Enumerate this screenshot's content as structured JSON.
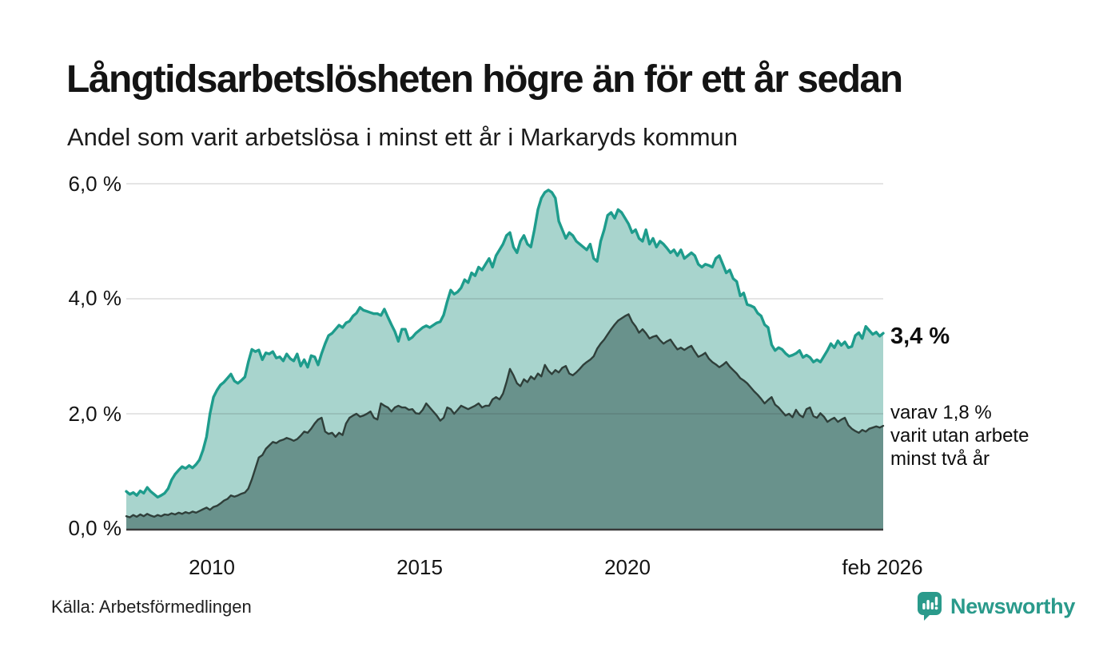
{
  "title": "Långtidsarbetslösheten högre än för ett år sedan",
  "subtitle": "Andel som varit arbetslösa i minst ett år i Markaryds kommun",
  "annotations": {
    "value_label": "3,4 %",
    "sub_lines": [
      "varav 1,8 %",
      "varit utan arbete",
      "minst två år"
    ]
  },
  "source": "Källa: Arbetsförmedlingen",
  "logo": {
    "text": "Newsworthy"
  },
  "colors": {
    "accent": "#2a9a8b",
    "gridline": "rgba(40,40,40,0.12)",
    "baseline": "#3a3a3a",
    "series1_line": "#1e9c8c",
    "series1_fill": "#a8d4cd",
    "series2_line": "#2f3f3a",
    "series2_fill": "#69928c"
  },
  "chart_data": {
    "type": "area",
    "title": "Långtidsarbetslösheten högre än för ett år sedan",
    "subtitle": "Andel som varit arbetslösa i minst ett år i Markaryds kommun",
    "unit": "%",
    "x_start": "2008-01",
    "x_end": "2026-02",
    "frequency": "monthly",
    "ylim": [
      0,
      6
    ],
    "grid": "horizontal",
    "y_tick_labels": [
      "6,0 %",
      "4,0 %",
      "2,0 %",
      "0,0 %"
    ],
    "y_tick_values": [
      6,
      4,
      2,
      0
    ],
    "x_tick_labels": [
      "2010",
      "2015",
      "2020",
      "feb 2026"
    ],
    "x_tick_month_index": [
      24,
      84,
      144,
      217
    ],
    "end_labels": {
      "series1": "3,4 %",
      "series2": "varav 1,8 % varit utan arbete minst två år"
    },
    "series": [
      {
        "name": "minst ett år",
        "color": "#1e9c8c",
        "fill": "#a8d4cd",
        "values": [
          0.65,
          0.6,
          0.63,
          0.58,
          0.66,
          0.62,
          0.72,
          0.65,
          0.6,
          0.55,
          0.58,
          0.62,
          0.7,
          0.85,
          0.95,
          1.02,
          1.08,
          1.05,
          1.1,
          1.06,
          1.12,
          1.2,
          1.37,
          1.6,
          2.0,
          2.29,
          2.41,
          2.5,
          2.55,
          2.62,
          2.69,
          2.57,
          2.53,
          2.58,
          2.64,
          2.9,
          3.12,
          3.08,
          3.11,
          2.94,
          3.06,
          3.04,
          3.08,
          2.97,
          2.99,
          2.92,
          3.04,
          2.96,
          2.92,
          3.04,
          2.83,
          2.94,
          2.81,
          3.01,
          2.99,
          2.85,
          3.05,
          3.22,
          3.36,
          3.4,
          3.47,
          3.54,
          3.5,
          3.58,
          3.61,
          3.7,
          3.75,
          3.85,
          3.8,
          3.78,
          3.76,
          3.74,
          3.74,
          3.71,
          3.82,
          3.68,
          3.55,
          3.43,
          3.26,
          3.47,
          3.47,
          3.29,
          3.33,
          3.4,
          3.45,
          3.5,
          3.53,
          3.5,
          3.54,
          3.58,
          3.6,
          3.72,
          3.95,
          4.15,
          4.08,
          4.12,
          4.19,
          4.33,
          4.28,
          4.45,
          4.4,
          4.55,
          4.5,
          4.6,
          4.7,
          4.55,
          4.75,
          4.85,
          4.95,
          5.1,
          5.15,
          4.9,
          4.8,
          5.0,
          5.1,
          4.95,
          4.9,
          5.2,
          5.55,
          5.75,
          5.85,
          5.89,
          5.85,
          5.75,
          5.35,
          5.2,
          5.05,
          5.15,
          5.1,
          5.0,
          4.95,
          4.9,
          4.85,
          4.95,
          4.7,
          4.65,
          5.0,
          5.2,
          5.45,
          5.5,
          5.4,
          5.55,
          5.5,
          5.4,
          5.3,
          5.15,
          5.2,
          5.05,
          5.0,
          5.2,
          4.95,
          5.05,
          4.9,
          5.0,
          4.95,
          4.88,
          4.8,
          4.85,
          4.75,
          4.85,
          4.7,
          4.75,
          4.8,
          4.75,
          4.6,
          4.55,
          4.6,
          4.58,
          4.55,
          4.7,
          4.75,
          4.6,
          4.45,
          4.5,
          4.35,
          4.3,
          4.05,
          4.1,
          3.9,
          3.88,
          3.85,
          3.75,
          3.7,
          3.55,
          3.5,
          3.2,
          3.1,
          3.15,
          3.12,
          3.05,
          3.0,
          3.02,
          3.05,
          3.1,
          2.98,
          3.02,
          2.98,
          2.9,
          2.94,
          2.9,
          3.0,
          3.1,
          3.22,
          3.15,
          3.27,
          3.19,
          3.25,
          3.15,
          3.17,
          3.36,
          3.41,
          3.31,
          3.52,
          3.45,
          3.38,
          3.42,
          3.35,
          3.4
        ]
      },
      {
        "name": "minst två år",
        "color": "#2f3f3a",
        "fill": "#69928c",
        "values": [
          0.22,
          0.2,
          0.24,
          0.21,
          0.25,
          0.22,
          0.26,
          0.23,
          0.21,
          0.24,
          0.22,
          0.25,
          0.24,
          0.27,
          0.25,
          0.28,
          0.26,
          0.29,
          0.27,
          0.3,
          0.28,
          0.31,
          0.34,
          0.37,
          0.33,
          0.38,
          0.4,
          0.44,
          0.49,
          0.52,
          0.58,
          0.56,
          0.58,
          0.61,
          0.63,
          0.7,
          0.86,
          1.05,
          1.24,
          1.28,
          1.39,
          1.45,
          1.51,
          1.49,
          1.53,
          1.55,
          1.58,
          1.56,
          1.53,
          1.56,
          1.62,
          1.69,
          1.67,
          1.74,
          1.83,
          1.9,
          1.93,
          1.69,
          1.65,
          1.67,
          1.6,
          1.67,
          1.63,
          1.83,
          1.93,
          1.97,
          2.0,
          1.95,
          1.97,
          2.0,
          2.04,
          1.93,
          1.9,
          2.18,
          2.14,
          2.11,
          2.04,
          2.11,
          2.14,
          2.11,
          2.11,
          2.07,
          2.08,
          2.01,
          2.0,
          2.07,
          2.18,
          2.11,
          2.04,
          1.97,
          1.88,
          1.93,
          2.11,
          2.08,
          2.0,
          2.07,
          2.14,
          2.11,
          2.08,
          2.11,
          2.14,
          2.18,
          2.11,
          2.14,
          2.14,
          2.25,
          2.29,
          2.25,
          2.35,
          2.55,
          2.78,
          2.67,
          2.53,
          2.48,
          2.6,
          2.55,
          2.65,
          2.6,
          2.7,
          2.65,
          2.85,
          2.75,
          2.69,
          2.76,
          2.72,
          2.8,
          2.83,
          2.7,
          2.67,
          2.72,
          2.78,
          2.85,
          2.9,
          2.94,
          3.0,
          3.13,
          3.22,
          3.29,
          3.38,
          3.47,
          3.55,
          3.62,
          3.66,
          3.7,
          3.73,
          3.6,
          3.52,
          3.41,
          3.47,
          3.4,
          3.31,
          3.34,
          3.36,
          3.28,
          3.22,
          3.26,
          3.29,
          3.2,
          3.12,
          3.15,
          3.11,
          3.15,
          3.18,
          3.08,
          2.99,
          3.02,
          3.06,
          2.96,
          2.9,
          2.86,
          2.81,
          2.85,
          2.9,
          2.82,
          2.76,
          2.7,
          2.62,
          2.58,
          2.53,
          2.46,
          2.39,
          2.33,
          2.26,
          2.18,
          2.24,
          2.29,
          2.16,
          2.11,
          2.04,
          1.97,
          2.0,
          1.94,
          2.07,
          1.98,
          1.94,
          2.08,
          2.11,
          1.96,
          1.93,
          2.01,
          1.95,
          1.86,
          1.9,
          1.93,
          1.86,
          1.9,
          1.93,
          1.8,
          1.74,
          1.7,
          1.67,
          1.72,
          1.69,
          1.74,
          1.76,
          1.78,
          1.76,
          1.79
        ]
      }
    ]
  }
}
